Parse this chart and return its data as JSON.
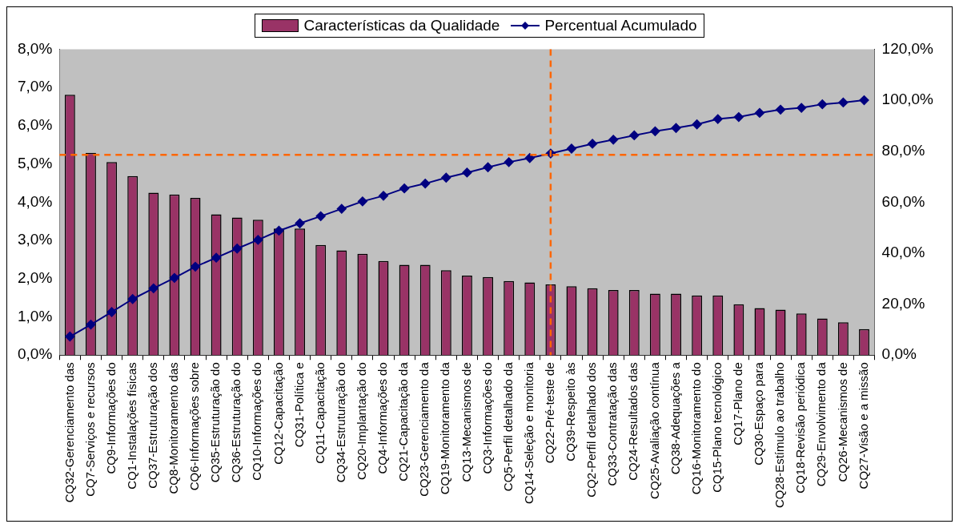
{
  "chart_data": {
    "type": "bar",
    "categories": [
      "CQ32-Gerenciamento das",
      "CQ7-Serviços e recursos",
      "CQ9-Informações do",
      "CQ1-Instalações físicas",
      "CQ37-Estruturação dos",
      "CQ8-Monitoramento das",
      "CQ6-Informações sobre",
      "CQ35-Estruturação do",
      "CQ36-Estruturação do",
      "CQ10-Informações do",
      "CQ12-Capacitação",
      "CQ31-Política e",
      "CQ11-Capacitação",
      "CQ34-Estruturação do",
      "CQ20-Implantação do",
      "CQ4-Informações do",
      "CQ21-Capacitação da",
      "CQ23-Gerenciamento da",
      "CQ19-Monitoramento da",
      "CQ13-Mecanismos de",
      "CQ3-Informações do",
      "CQ5-Perfil detalhado da",
      "CQ14-Seleção e monitoria",
      "CQ22-Pré-teste de",
      "CQ39-Respeito às",
      "CQ2-Perfil detalhado dos",
      "CQ33-Contratação das",
      "CQ24-Resultados das",
      "CQ25-Avaliação contínua",
      "CQ38-Adequações a",
      "CQ16-Monitoramento do",
      "CQ15-Plano tecnológico",
      "CQ17-Plano de",
      "CQ30-Espaço para",
      "CQ28-Estímulo ao trabalho",
      "CQ18-Revisão periódica",
      "CQ29-Envolvimento da",
      "CQ26-Mecanismos de",
      "CQ27-Visão e a missão"
    ],
    "series": [
      {
        "name": "Características da Qualidade",
        "type": "bar",
        "color": "#993366",
        "values": [
          6.81,
          5.29,
          5.05,
          4.68,
          4.25,
          4.2,
          4.11,
          3.68,
          3.6,
          3.54,
          3.31,
          3.31,
          2.88,
          2.74,
          2.65,
          2.46,
          2.36,
          2.36,
          2.22,
          2.08,
          2.04,
          1.94,
          1.9,
          1.85,
          1.8,
          1.75,
          1.7,
          1.7,
          1.61,
          1.61,
          1.56,
          1.56,
          1.33,
          1.23,
          1.19,
          1.09,
          0.96,
          0.86,
          0.68
        ]
      },
      {
        "name": "Percentual Acumulado",
        "type": "line",
        "axis": "y2",
        "color": "#000080",
        "values": [
          7.3,
          12.0,
          16.9,
          22.0,
          26.2,
          30.3,
          34.7,
          38.2,
          41.8,
          45.2,
          48.8,
          51.7,
          54.5,
          57.4,
          60.3,
          62.5,
          65.4,
          67.3,
          69.6,
          71.6,
          73.7,
          75.7,
          77.3,
          79.1,
          81.0,
          82.9,
          84.5,
          86.2,
          87.8,
          89.1,
          90.5,
          92.6,
          93.4,
          95.0,
          96.3,
          97.0,
          98.4,
          99.1,
          100
        ]
      }
    ],
    "ylim": [
      0,
      8
    ],
    "yticks": [
      {
        "value": 0,
        "label": "0,0%"
      },
      {
        "value": 1,
        "label": "1,0%"
      },
      {
        "value": 2,
        "label": "2,0%"
      },
      {
        "value": 3,
        "label": "3,0%"
      },
      {
        "value": 4,
        "label": "4,0%"
      },
      {
        "value": 5,
        "label": "5,0%"
      },
      {
        "value": 6,
        "label": "6,0%"
      },
      {
        "value": 7,
        "label": "7,0%"
      },
      {
        "value": 8,
        "label": "8,0%"
      }
    ],
    "y2lim": [
      0,
      120
    ],
    "y2ticks": [
      {
        "value": 0,
        "label": "0,0%"
      },
      {
        "value": 20,
        "label": "20,0%"
      },
      {
        "value": 40,
        "label": "40,0%"
      },
      {
        "value": 60,
        "label": "60,0%"
      },
      {
        "value": 80,
        "label": "80,0%"
      },
      {
        "value": 100,
        "label": "100,0%"
      },
      {
        "value": 120,
        "label": "120,0%"
      }
    ],
    "ref_lines": [
      {
        "axis": "y2",
        "value": 78.6,
        "color": "#ff6600",
        "line_style": "dashed"
      },
      {
        "axis": "x",
        "value": "CQ22-Pré-teste de",
        "color": "#ff6600",
        "line_style": "dashed"
      }
    ],
    "marker": "diamond",
    "line_style": "solid",
    "grid": false,
    "legend": "top"
  }
}
